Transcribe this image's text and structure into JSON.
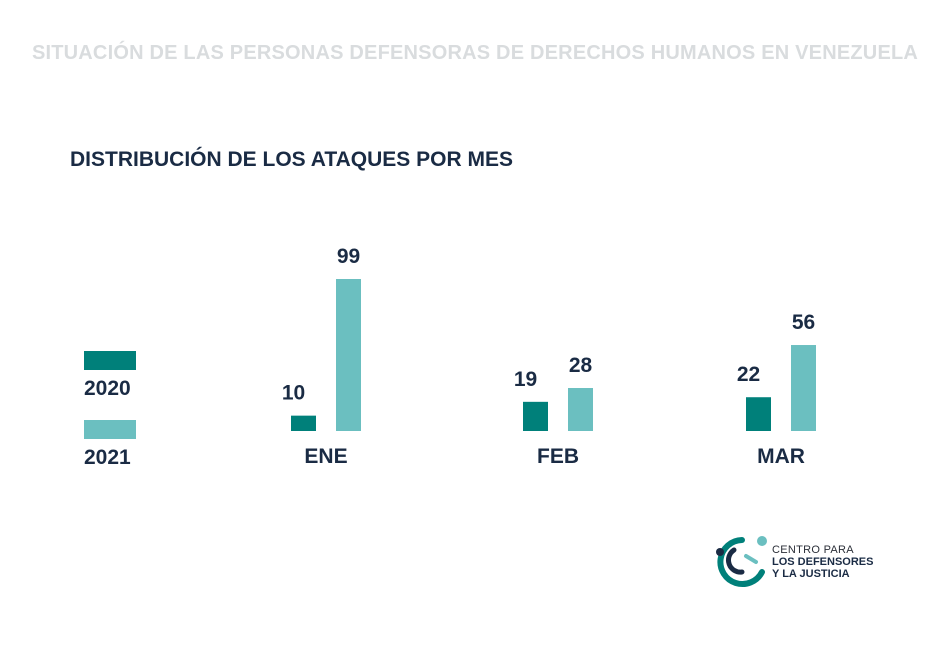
{
  "header": {
    "text": "SITUACIÓN DE LAS PERSONAS DEFENSORAS DE DERECHOS HUMANOS EN VENEZUELA"
  },
  "colors": {
    "series_2020": "#00807a",
    "series_2021": "#6bbfc0",
    "text": "#1a2b44",
    "header": "#d9dcde"
  },
  "chart_data": {
    "type": "bar",
    "title": "DISTRIBUCIÓN DE LOS ATAQUES POR MES",
    "categories": [
      "ENE",
      "FEB",
      "MAR"
    ],
    "series": [
      {
        "name": "2020",
        "values": [
          10,
          19,
          22
        ]
      },
      {
        "name": "2021",
        "values": [
          99,
          28,
          56
        ]
      }
    ],
    "legend_position": "left",
    "grid": false,
    "ylim": [
      0,
      99
    ]
  },
  "logo": {
    "line1": "CENTRO PARA",
    "line2": "LOS DEFENSORES",
    "line3": "Y LA JUSTICIA"
  }
}
